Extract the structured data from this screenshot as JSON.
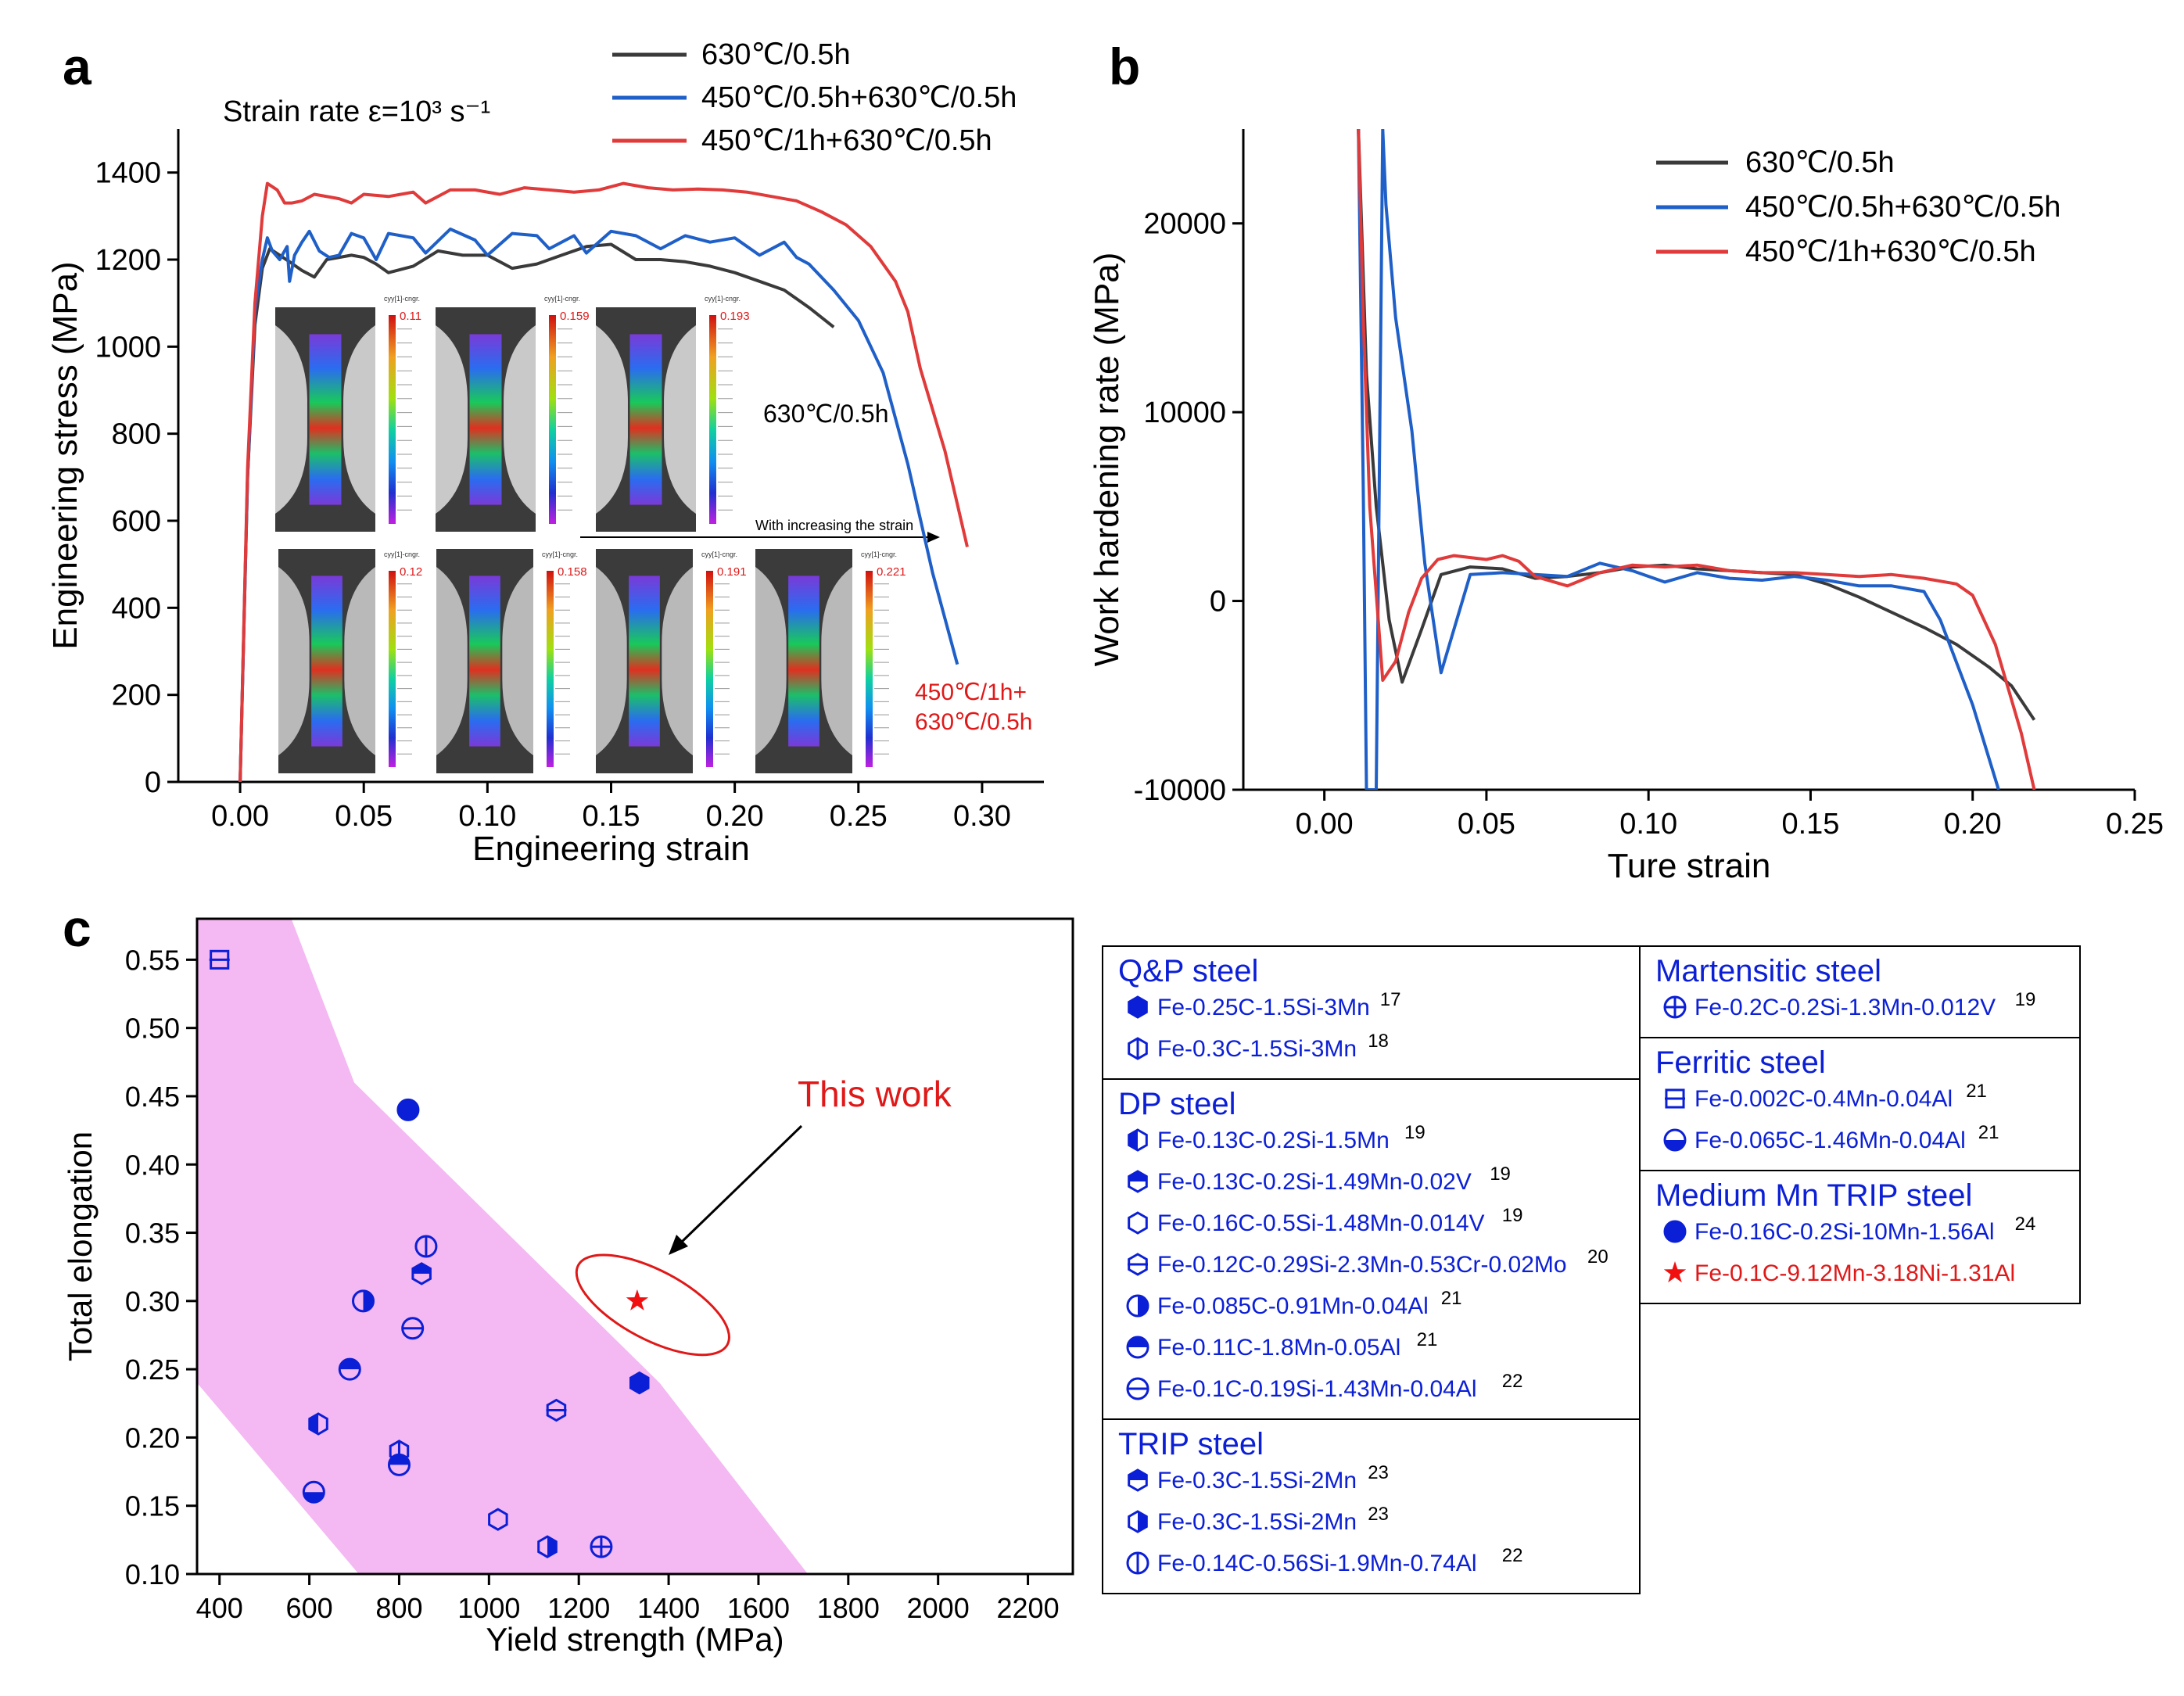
{
  "panel_letters": [
    "a",
    "b",
    "c"
  ],
  "colors": {
    "black_series": "#3a3a3a",
    "blue_series": "#1f5fc8",
    "red_series": "#e03a3a",
    "marker_blue": "#0b1fd6",
    "pink_band": "#f4b8f2",
    "red_text": "#e01818"
  },
  "panel_a": {
    "annotation_strain_rate": "Strain rate ε=10³ s⁻¹",
    "label_630": "630℃/0.5h",
    "label_450_red": "450℃/1h+",
    "label_450_red_2": "630℃/0.5h",
    "arrow_caption": "With increasing the strain",
    "dic_top_maxima": [
      "0.11",
      "0.159",
      "0.193"
    ],
    "dic_bottom_maxima": [
      "0.12",
      "0.158",
      "0.191",
      "0.221"
    ],
    "dic_header": "cyy[1]-cngr."
  },
  "panel_c_legend": {
    "groups": [
      {
        "title": "Q&P steel",
        "items": [
          {
            "marker": "hex-filled",
            "text": "Fe-0.25C-1.5Si-3Mn",
            "ref": "17"
          },
          {
            "marker": "hex-vline",
            "text": "Fe-0.3C-1.5Si-3Mn",
            "ref": "18"
          }
        ]
      },
      {
        "title": "DP steel",
        "items": [
          {
            "marker": "hex-left",
            "text": "Fe-0.13C-0.2Si-1.5Mn",
            "ref": "19"
          },
          {
            "marker": "hex-top",
            "text": "Fe-0.13C-0.2Si-1.49Mn-0.02V",
            "ref": "19"
          },
          {
            "marker": "hex-open",
            "text": "Fe-0.16C-0.5Si-1.48Mn-0.014V",
            "ref": "19"
          },
          {
            "marker": "hex-hline",
            "text": "Fe-0.12C-0.29Si-2.3Mn-0.53Cr-0.02Mo",
            "ref": "20"
          },
          {
            "marker": "circle-right",
            "text": "Fe-0.085C-0.91Mn-0.04Al",
            "ref": "21"
          },
          {
            "marker": "circle-top",
            "text": "Fe-0.11C-1.8Mn-0.05Al",
            "ref": "21"
          },
          {
            "marker": "circle-hline",
            "text": "Fe-0.1C-0.19Si-1.43Mn-0.04Al",
            "ref": "22"
          }
        ]
      },
      {
        "title": "TRIP steel",
        "items": [
          {
            "marker": "hex-top",
            "text": "Fe-0.3C-1.5Si-2Mn",
            "ref": "23"
          },
          {
            "marker": "hex-right",
            "text": "Fe-0.3C-1.5Si-2Mn",
            "ref": "23"
          },
          {
            "marker": "circle-vline",
            "text": "Fe-0.14C-0.56Si-1.9Mn-0.74Al",
            "ref": "22"
          }
        ]
      },
      {
        "title": "Martensitic steel",
        "items": [
          {
            "marker": "circle-cross",
            "text": "Fe-0.2C-0.2Si-1.3Mn-0.012V",
            "ref": "19"
          }
        ]
      },
      {
        "title": "Ferritic steel",
        "items": [
          {
            "marker": "square-hline",
            "text": "Fe-0.002C-0.4Mn-0.04Al",
            "ref": "21"
          },
          {
            "marker": "circle-bottom",
            "text": "Fe-0.065C-1.46Mn-0.04Al",
            "ref": "21"
          }
        ]
      },
      {
        "title": "Medium Mn TRIP steel",
        "items": [
          {
            "marker": "circle-filled",
            "text": "Fe-0.16C-0.2Si-10Mn-1.56Al",
            "ref": "24"
          },
          {
            "marker": "star-red",
            "text": "Fe-0.1C-9.12Mn-3.18Ni-1.31Al",
            "ref": ""
          }
        ]
      }
    ]
  },
  "chart_data": [
    {
      "panel": "a",
      "type": "line",
      "title": "",
      "xlabel": "Engineering strain",
      "ylabel": "Engineering stress (MPa)",
      "xlim": [
        -0.025,
        0.325
      ],
      "ylim": [
        0,
        1500
      ],
      "xticks": [
        0.0,
        0.05,
        0.1,
        0.15,
        0.2,
        0.25,
        0.3
      ],
      "xtick_labels": [
        "0.00",
        "0.05",
        "0.10",
        "0.15",
        "0.20",
        "0.25",
        "0.30"
      ],
      "yticks": [
        0,
        200,
        400,
        600,
        800,
        1000,
        1200,
        1400
      ],
      "ytick_labels": [
        "0",
        "200",
        "400",
        "600",
        "800",
        "1000",
        "1200",
        "1400"
      ],
      "legend_position": "top",
      "series": [
        {
          "name": "630℃/0.5h",
          "color": "#3a3a3a",
          "x": [
            0,
            0.003,
            0.006,
            0.009,
            0.012,
            0.016,
            0.02,
            0.025,
            0.03,
            0.035,
            0.045,
            0.05,
            0.055,
            0.06,
            0.07,
            0.08,
            0.09,
            0.1,
            0.11,
            0.12,
            0.13,
            0.14,
            0.15,
            0.16,
            0.17,
            0.18,
            0.19,
            0.2,
            0.21,
            0.22,
            0.23,
            0.24
          ],
          "y": [
            0,
            700,
            1050,
            1180,
            1225,
            1210,
            1195,
            1175,
            1160,
            1200,
            1210,
            1205,
            1190,
            1170,
            1185,
            1220,
            1210,
            1210,
            1180,
            1190,
            1210,
            1230,
            1235,
            1200,
            1200,
            1195,
            1185,
            1170,
            1150,
            1130,
            1090,
            1045
          ]
        },
        {
          "name": "450℃/0.5h+630℃/0.5h",
          "color": "#1f5fc8",
          "x": [
            0,
            0.003,
            0.006,
            0.009,
            0.011,
            0.013,
            0.016,
            0.019,
            0.02,
            0.022,
            0.025,
            0.028,
            0.032,
            0.036,
            0.04,
            0.045,
            0.05,
            0.055,
            0.06,
            0.07,
            0.075,
            0.085,
            0.095,
            0.1,
            0.11,
            0.12,
            0.125,
            0.135,
            0.14,
            0.15,
            0.16,
            0.17,
            0.18,
            0.19,
            0.2,
            0.21,
            0.22,
            0.225,
            0.23,
            0.24,
            0.25,
            0.26,
            0.27,
            0.28,
            0.29
          ],
          "y": [
            0,
            700,
            1080,
            1200,
            1250,
            1220,
            1200,
            1230,
            1150,
            1210,
            1240,
            1265,
            1220,
            1205,
            1210,
            1260,
            1250,
            1200,
            1260,
            1250,
            1215,
            1270,
            1245,
            1210,
            1260,
            1255,
            1225,
            1255,
            1215,
            1265,
            1255,
            1225,
            1255,
            1240,
            1250,
            1210,
            1240,
            1205,
            1190,
            1130,
            1060,
            940,
            730,
            480,
            270
          ]
        },
        {
          "name": "450℃/1h+630℃/0.5h",
          "color": "#e03a3a",
          "x": [
            0,
            0.003,
            0.006,
            0.009,
            0.011,
            0.015,
            0.018,
            0.021,
            0.025,
            0.03,
            0.04,
            0.045,
            0.05,
            0.06,
            0.07,
            0.075,
            0.085,
            0.095,
            0.105,
            0.115,
            0.125,
            0.135,
            0.145,
            0.155,
            0.165,
            0.175,
            0.185,
            0.195,
            0.205,
            0.215,
            0.225,
            0.235,
            0.245,
            0.255,
            0.265,
            0.27,
            0.275,
            0.285,
            0.294
          ],
          "y": [
            0,
            720,
            1100,
            1300,
            1375,
            1360,
            1330,
            1330,
            1335,
            1350,
            1340,
            1330,
            1350,
            1345,
            1355,
            1330,
            1360,
            1360,
            1350,
            1365,
            1360,
            1355,
            1360,
            1375,
            1365,
            1360,
            1362,
            1360,
            1355,
            1345,
            1335,
            1310,
            1280,
            1230,
            1150,
            1080,
            950,
            760,
            540
          ]
        }
      ]
    },
    {
      "panel": "b",
      "type": "line",
      "title": "",
      "xlabel": "Ture strain",
      "ylabel": "Work hardening rate (MPa)",
      "xlim": [
        -0.025,
        0.25
      ],
      "ylim": [
        -10000,
        25000
      ],
      "xticks": [
        0.0,
        0.05,
        0.1,
        0.15,
        0.2,
        0.25
      ],
      "xtick_labels": [
        "0.00",
        "0.05",
        "0.10",
        "0.15",
        "0.20",
        "0.25"
      ],
      "yticks": [
        -10000,
        0,
        10000,
        20000
      ],
      "ytick_labels": [
        "-10000",
        "0",
        "10000",
        "20000"
      ],
      "legend_position": "top-right",
      "series": [
        {
          "name": "630℃/0.5h",
          "color": "#3a3a3a",
          "x": [
            0.0105,
            0.013,
            0.016,
            0.02,
            0.024,
            0.03,
            0.036,
            0.045,
            0.055,
            0.065,
            0.075,
            0.085,
            0.095,
            0.105,
            0.115,
            0.125,
            0.135,
            0.145,
            0.155,
            0.165,
            0.175,
            0.185,
            0.195,
            0.205,
            0.212,
            0.219
          ],
          "y": [
            25000,
            12000,
            5000,
            -1000,
            -4300,
            -1500,
            1400,
            1800,
            1700,
            1200,
            1300,
            1500,
            1800,
            1900,
            1700,
            1600,
            1500,
            1400,
            900,
            200,
            -600,
            -1400,
            -2300,
            -3500,
            -4500,
            -6300
          ]
        },
        {
          "name": "450℃/0.5h+630℃/0.5h",
          "color": "#1f5fc8",
          "x": [
            0.0105,
            0.012,
            0.013,
            0.016,
            0.018,
            0.019,
            0.022,
            0.027,
            0.031,
            0.036,
            0.045,
            0.055,
            0.065,
            0.075,
            0.085,
            0.095,
            0.105,
            0.115,
            0.125,
            0.135,
            0.145,
            0.155,
            0.165,
            0.175,
            0.185,
            0.19,
            0.2,
            0.208
          ],
          "y": [
            25000,
            6000,
            -10000,
            -10000,
            25000,
            21000,
            15000,
            9000,
            2000,
            -3800,
            1400,
            1500,
            1400,
            1300,
            2000,
            1600,
            1000,
            1500,
            1200,
            1100,
            1300,
            1100,
            800,
            800,
            500,
            -1000,
            -5500,
            -10000
          ]
        },
        {
          "name": "450℃/1h+630℃/0.5h",
          "color": "#e03a3a",
          "x": [
            0.0105,
            0.012,
            0.014,
            0.018,
            0.022,
            0.026,
            0.03,
            0.035,
            0.04,
            0.05,
            0.055,
            0.06,
            0.065,
            0.075,
            0.085,
            0.095,
            0.105,
            0.115,
            0.125,
            0.135,
            0.145,
            0.155,
            0.165,
            0.175,
            0.185,
            0.195,
            0.2,
            0.207,
            0.215,
            0.219
          ],
          "y": [
            25000,
            15000,
            5000,
            -4200,
            -3200,
            -600,
            1200,
            2200,
            2400,
            2200,
            2400,
            2100,
            1300,
            800,
            1500,
            1900,
            1800,
            1900,
            1600,
            1500,
            1500,
            1400,
            1300,
            1400,
            1200,
            900,
            300,
            -2300,
            -7000,
            -10000
          ]
        }
      ]
    },
    {
      "panel": "c",
      "type": "scatter",
      "title": "",
      "xlabel": "Yield strength (MPa)",
      "ylabel": "Total elongation",
      "xlim": [
        350,
        2300
      ],
      "ylim": [
        0.1,
        0.58
      ],
      "xticks": [
        400,
        600,
        800,
        1000,
        1200,
        1400,
        1600,
        1800,
        2000,
        2200
      ],
      "xtick_labels": [
        "400",
        "600",
        "800",
        "1000",
        "1200",
        "1400",
        "1600",
        "1800",
        "2000",
        "2200"
      ],
      "yticks": [
        0.1,
        0.15,
        0.2,
        0.25,
        0.3,
        0.35,
        0.4,
        0.45,
        0.5,
        0.55
      ],
      "ytick_labels": [
        "0.10",
        "0.15",
        "0.20",
        "0.25",
        "0.30",
        "0.35",
        "0.40",
        "0.45",
        "0.50",
        "0.55"
      ],
      "annotation": "This work",
      "band_polygon": [
        [
          350,
          0.24
        ],
        [
          350,
          0.58
        ],
        [
          560,
          0.58
        ],
        [
          700,
          0.46
        ],
        [
          1380,
          0.24
        ],
        [
          1710,
          0.1
        ],
        [
          710,
          0.1
        ]
      ],
      "points": [
        {
          "x": 400,
          "y": 0.55,
          "marker": "square-hline"
        },
        {
          "x": 820,
          "y": 0.44,
          "marker": "circle-filled"
        },
        {
          "x": 860,
          "y": 0.34,
          "marker": "circle-vline"
        },
        {
          "x": 850,
          "y": 0.32,
          "marker": "hex-top"
        },
        {
          "x": 720,
          "y": 0.3,
          "marker": "circle-right"
        },
        {
          "x": 830,
          "y": 0.28,
          "marker": "circle-hline"
        },
        {
          "x": 690,
          "y": 0.25,
          "marker": "circle-top"
        },
        {
          "x": 1335,
          "y": 0.24,
          "marker": "hex-filled"
        },
        {
          "x": 620,
          "y": 0.21,
          "marker": "hex-left"
        },
        {
          "x": 1150,
          "y": 0.22,
          "marker": "hex-hline"
        },
        {
          "x": 800,
          "y": 0.19,
          "marker": "hex-vline"
        },
        {
          "x": 800,
          "y": 0.18,
          "marker": "circle-top"
        },
        {
          "x": 610,
          "y": 0.16,
          "marker": "circle-bottom"
        },
        {
          "x": 1020,
          "y": 0.14,
          "marker": "hex-open"
        },
        {
          "x": 1130,
          "y": 0.12,
          "marker": "hex-right"
        },
        {
          "x": 1250,
          "y": 0.12,
          "marker": "circle-cross"
        },
        {
          "x": 1330,
          "y": 0.3,
          "marker": "star-red"
        }
      ]
    }
  ]
}
